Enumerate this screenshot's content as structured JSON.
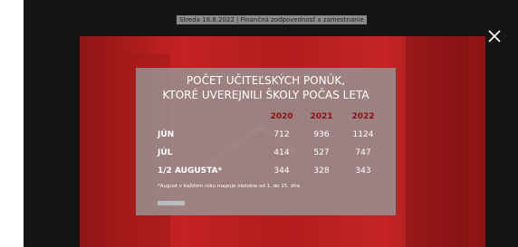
{
  "caption": "Streda 18.8.2022 | Finančná zodpovednosť a zamestnanie",
  "infographic": {
    "title_lines": [
      "POČET UČITEĽSKÝCH PONÚK,",
      "KTORÉ UVEREJNILI ŠKOLY POČAS LETA"
    ],
    "table": {
      "header": [
        2020,
        2021,
        2022
      ],
      "rows": [
        [
          "JÚN",
          712,
          936,
          1124
        ],
        [
          "JÚL",
          414,
          527,
          747
        ],
        [
          "1/2 AUGUSTA*",
          344,
          328,
          343
        ]
      ]
    },
    "footnote": "*August v každom roku mapuje obdobie od 1. do 15. dňa"
  }
}
